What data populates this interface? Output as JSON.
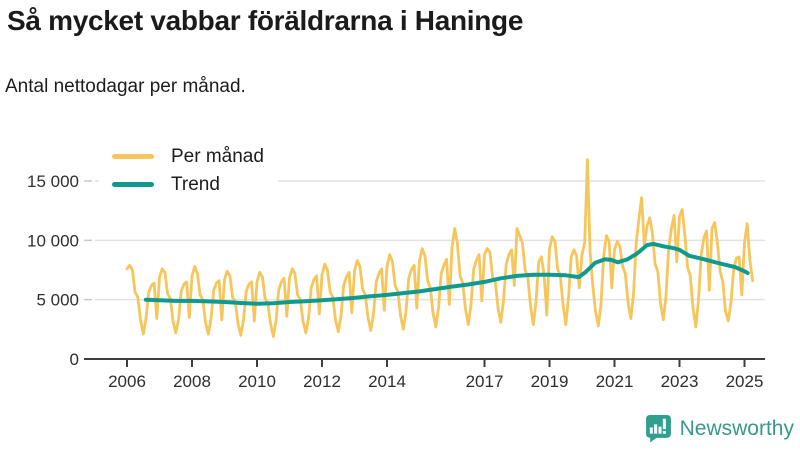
{
  "header": {
    "title": "Så mycket vabbar föräldrarna i Haninge",
    "subtitle": "Antal nettodagar per månad."
  },
  "legend": {
    "monthly": "Per månad",
    "trend": "Trend"
  },
  "branding": {
    "name": "Newsworthy"
  },
  "colors": {
    "monthly_line": "#F6C65C",
    "trend_line": "#109A8F",
    "grid": "#E2E2E2",
    "axis": "#3D3D3D",
    "tick_label": "#2E2E2E",
    "brand": "#38998B"
  },
  "chart_data": {
    "type": "line",
    "title": "Så mycket vabbar föräldrarna i Haninge",
    "subtitle": "Antal nettodagar per månad.",
    "unit": "nettodagar per månad",
    "x_start": "2006-01",
    "x_end": "2025-04",
    "x_ticks": [
      2006,
      2008,
      2010,
      2012,
      2014,
      2017,
      2019,
      2021,
      2023,
      2025
    ],
    "y_ticks": [
      0,
      5000,
      10000,
      15000
    ],
    "y_tick_labels": [
      "0",
      "5 000",
      "10 000",
      "15 000"
    ],
    "ylim": [
      0,
      17500
    ],
    "grid": "horizontal",
    "legend_position": "top-left",
    "series": [
      {
        "name": "Per månad",
        "color": "#F6C65C",
        "start": "2006-01",
        "monthly_values": [
          7600,
          7900,
          7500,
          5600,
          5200,
          3300,
          2100,
          3400,
          5600,
          6200,
          6400,
          3400,
          6900,
          7600,
          7300,
          5500,
          5100,
          3200,
          2200,
          3300,
          5700,
          6300,
          6500,
          3500,
          7000,
          7800,
          7200,
          5400,
          5000,
          3100,
          2100,
          3400,
          5800,
          6400,
          6600,
          3300,
          6700,
          7400,
          7000,
          5200,
          4800,
          3000,
          2000,
          3300,
          5700,
          6300,
          6500,
          3200,
          6500,
          7300,
          6900,
          5100,
          4700,
          3000,
          1900,
          3200,
          5800,
          6500,
          6800,
          3600,
          6800,
          7600,
          7200,
          5400,
          5000,
          3200,
          2200,
          3400,
          6000,
          6700,
          7000,
          3800,
          7100,
          8000,
          7500,
          5700,
          5200,
          3300,
          2300,
          3600,
          6200,
          6900,
          7300,
          3900,
          7400,
          8300,
          7800,
          5900,
          5400,
          3500,
          2400,
          3800,
          6500,
          7200,
          7600,
          4100,
          7800,
          8800,
          8200,
          6200,
          5700,
          3700,
          2500,
          4000,
          6800,
          7500,
          7900,
          4300,
          8300,
          9300,
          8700,
          6600,
          6000,
          3900,
          2700,
          4300,
          7200,
          7900,
          8400,
          4600,
          9400,
          11000,
          9700,
          7000,
          6400,
          4200,
          2900,
          4600,
          7600,
          8300,
          8800,
          4900,
          8800,
          9300,
          9000,
          6900,
          6500,
          4300,
          3100,
          4900,
          8000,
          8800,
          9200,
          6200,
          11000,
          10400,
          9800,
          7500,
          6900,
          4500,
          2900,
          4800,
          8200,
          8600,
          7100,
          3700,
          9300,
          10300,
          9900,
          7600,
          7000,
          4600,
          2900,
          5200,
          8600,
          9200,
          8700,
          6000,
          8800,
          9800,
          16800,
          9000,
          6200,
          4000,
          2800,
          4600,
          8700,
          10400,
          9900,
          6000,
          9200,
          9900,
          9500,
          7800,
          7200,
          4800,
          3400,
          5400,
          9800,
          11800,
          13600,
          9600,
          11200,
          11900,
          10600,
          8000,
          7400,
          4700,
          3300,
          5300,
          9400,
          11000,
          12100,
          8200,
          12000,
          12600,
          10400,
          7700,
          7000,
          4300,
          2700,
          5000,
          8800,
          10200,
          10800,
          5800,
          11000,
          11500,
          9800,
          7400,
          6500,
          4000,
          3200,
          4800,
          7600,
          8500,
          8600,
          5400,
          9800,
          11400,
          8300,
          6600
        ]
      },
      {
        "name": "Trend",
        "color": "#109A8F",
        "points": [
          [
            2006.58,
            5000
          ],
          [
            2007.0,
            4950
          ],
          [
            2007.5,
            4900
          ],
          [
            2008.0,
            4900
          ],
          [
            2008.5,
            4850
          ],
          [
            2009.0,
            4800
          ],
          [
            2009.5,
            4720
          ],
          [
            2010.0,
            4660
          ],
          [
            2010.5,
            4700
          ],
          [
            2011.0,
            4800
          ],
          [
            2011.5,
            4870
          ],
          [
            2012.0,
            4950
          ],
          [
            2012.5,
            5050
          ],
          [
            2013.0,
            5150
          ],
          [
            2013.5,
            5280
          ],
          [
            2014.0,
            5400
          ],
          [
            2014.5,
            5550
          ],
          [
            2015.0,
            5700
          ],
          [
            2015.5,
            5900
          ],
          [
            2016.0,
            6100
          ],
          [
            2016.5,
            6280
          ],
          [
            2017.0,
            6500
          ],
          [
            2017.5,
            6800
          ],
          [
            2018.0,
            7000
          ],
          [
            2018.5,
            7100
          ],
          [
            2019.0,
            7100
          ],
          [
            2019.5,
            7050
          ],
          [
            2019.9,
            6900
          ],
          [
            2020.1,
            7300
          ],
          [
            2020.4,
            8100
          ],
          [
            2020.7,
            8400
          ],
          [
            2020.9,
            8350
          ],
          [
            2021.1,
            8150
          ],
          [
            2021.4,
            8400
          ],
          [
            2021.7,
            8900
          ],
          [
            2022.0,
            9600
          ],
          [
            2022.2,
            9700
          ],
          [
            2022.5,
            9500
          ],
          [
            2022.8,
            9350
          ],
          [
            2023.0,
            9200
          ],
          [
            2023.3,
            8700
          ],
          [
            2023.6,
            8500
          ],
          [
            2023.9,
            8300
          ],
          [
            2024.1,
            8150
          ],
          [
            2024.4,
            7950
          ],
          [
            2024.7,
            7750
          ],
          [
            2025.0,
            7400
          ],
          [
            2025.1,
            7250
          ]
        ]
      }
    ]
  }
}
